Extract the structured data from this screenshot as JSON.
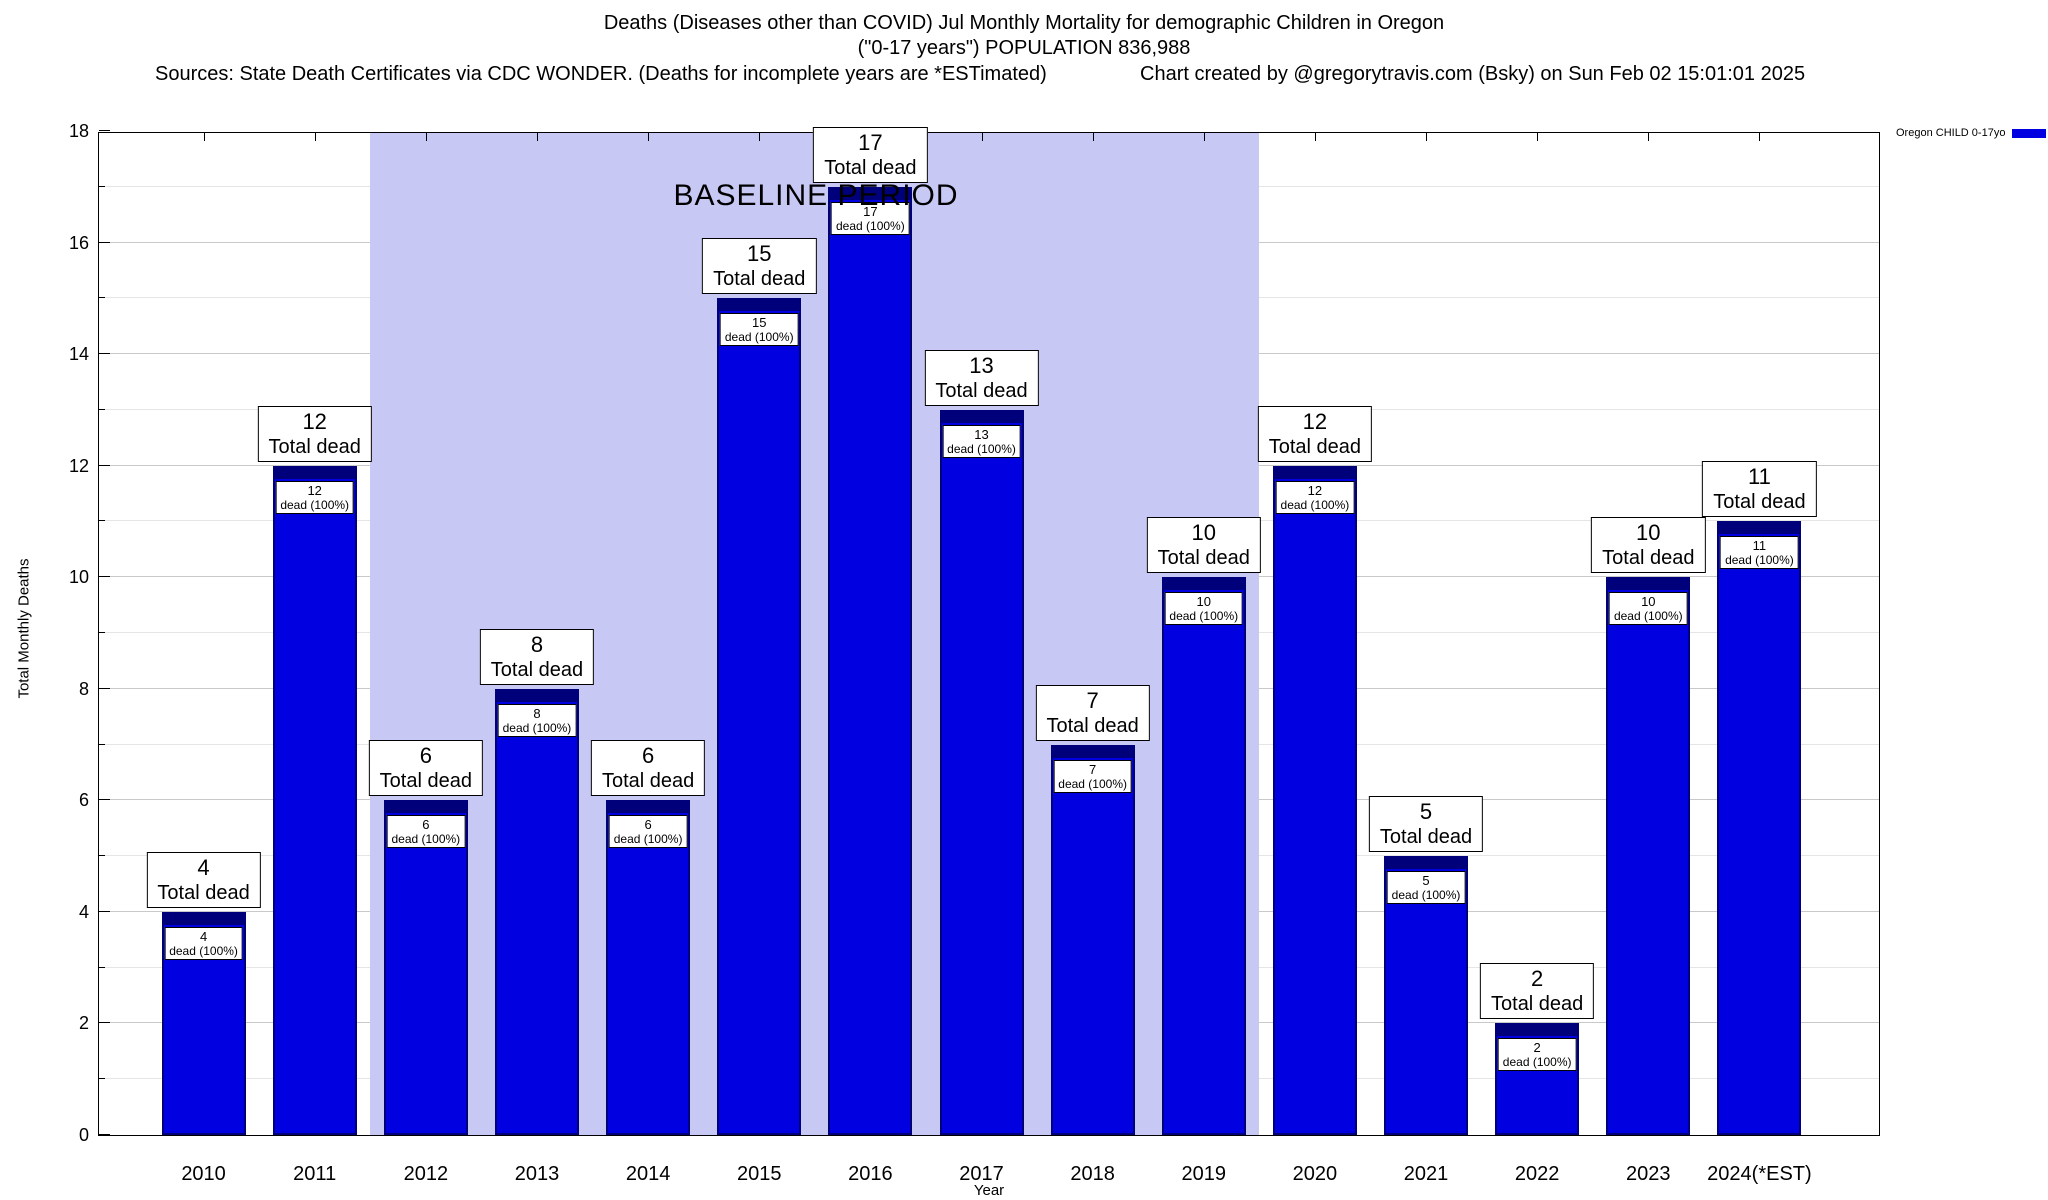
{
  "header": {
    "title_line1": "Deaths (Diseases other than COVID) Jul Monthly Mortality for demographic Children in Oregon",
    "title_line2": "(\"0-17 years\") POPULATION 836,988",
    "sources": "Sources: State Death Certificates via CDC WONDER. (Deaths for incomplete years are *ESTimated)",
    "credit": "Chart created by @gregorytravis.com (Bsky) on Sun Feb 02 15:01:01 2025"
  },
  "legend": {
    "label": "Oregon CHILD 0-17yo",
    "color": "#0000e0"
  },
  "chart_data": {
    "type": "bar",
    "title": "Deaths (Diseases other than COVID) Jul Monthly Mortality for demographic Children in Oregon (\"0-17 years\") POPULATION 836,988",
    "xlabel": "Year",
    "ylabel": "Total Monthly Deaths",
    "ylim": [
      0,
      18
    ],
    "ytick_step": 2,
    "grid": true,
    "legend_position": "top-right",
    "categories": [
      "2010",
      "2011",
      "2012",
      "2013",
      "2014",
      "2015",
      "2016",
      "2017",
      "2018",
      "2019",
      "2020",
      "2021",
      "2022",
      "2023",
      "2024(*EST)"
    ],
    "values": [
      4,
      12,
      6,
      8,
      6,
      15,
      17,
      13,
      7,
      10,
      12,
      5,
      2,
      10,
      11
    ],
    "bar_color": "#0000e0",
    "bar_cap_color": "#00007a",
    "bar_label_top": "Total dead",
    "bar_label_inner": "dead (100%)",
    "annotation": {
      "text": "BASELINE PERIOD"
    },
    "baseline_region": {
      "start_category": "2012",
      "end_category": "2019",
      "color": "#c8c8f5"
    }
  }
}
